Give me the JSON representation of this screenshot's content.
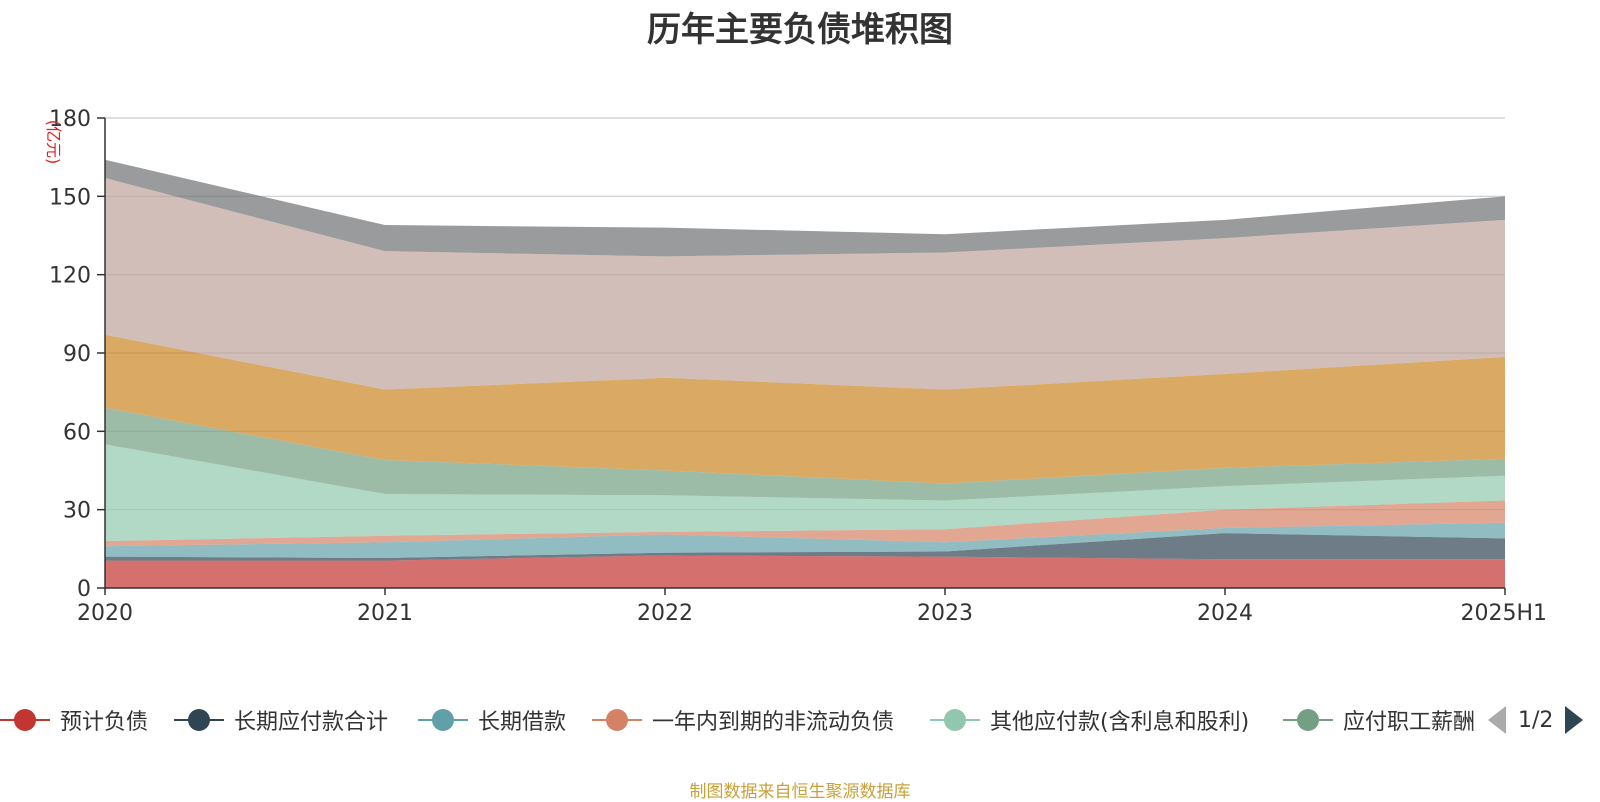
{
  "chart_data": {
    "type": "area",
    "stacked": true,
    "title": "历年主要负债堆积图",
    "ylabel": "(亿元)",
    "xlabel": "",
    "categories": [
      "2020",
      "2021",
      "2022",
      "2023",
      "2024",
      "2025H1"
    ],
    "ylim": [
      0,
      180
    ],
    "yticks": [
      0,
      30,
      60,
      90,
      120,
      150,
      180
    ],
    "grid": true,
    "legend_position": "bottom",
    "series": [
      {
        "name": "预计负债",
        "color": "#c23531",
        "values": [
          10.5,
          10.5,
          12.5,
          12,
          11,
          11
        ]
      },
      {
        "name": "长期应付款合计",
        "color": "#2f4554",
        "values": [
          1.5,
          1,
          1,
          2,
          10,
          8
        ]
      },
      {
        "name": "长期借款",
        "color": "#61a0a8",
        "values": [
          4,
          6,
          7,
          3.5,
          2,
          6
        ]
      },
      {
        "name": "一年内到期的非流动负债",
        "color": "#d48265",
        "values": [
          2,
          2.5,
          1,
          5,
          7,
          8.5
        ]
      },
      {
        "name": "其他应付款(含利息和股利)",
        "color": "#91c7ae",
        "values": [
          37,
          16,
          14,
          11,
          9,
          9.5
        ]
      },
      {
        "name": "应付职工薪酬",
        "color": "#749f83",
        "values": [
          14,
          13,
          9.5,
          6.5,
          7,
          6.5
        ]
      },
      {
        "name": "",
        "color": "#ca8622",
        "values": [
          28,
          27,
          35.5,
          36,
          36,
          39
        ]
      },
      {
        "name": "",
        "color": "#bda29a",
        "values": [
          60,
          53,
          46.5,
          52.5,
          52,
          52.5
        ]
      },
      {
        "name": "",
        "color": "#6e7074",
        "values": [
          7,
          10,
          11,
          7,
          7,
          9
        ]
      }
    ]
  },
  "legend_visible": [
    "预计负债",
    "长期应付款合计",
    "长期借款",
    "一年内到期的非流动负债",
    "其他应付款(含利息和股利)",
    "应付职工薪酬"
  ],
  "legend_pager": {
    "text": "1/2"
  },
  "source_note": "制图数据来自恒生聚源数据库"
}
